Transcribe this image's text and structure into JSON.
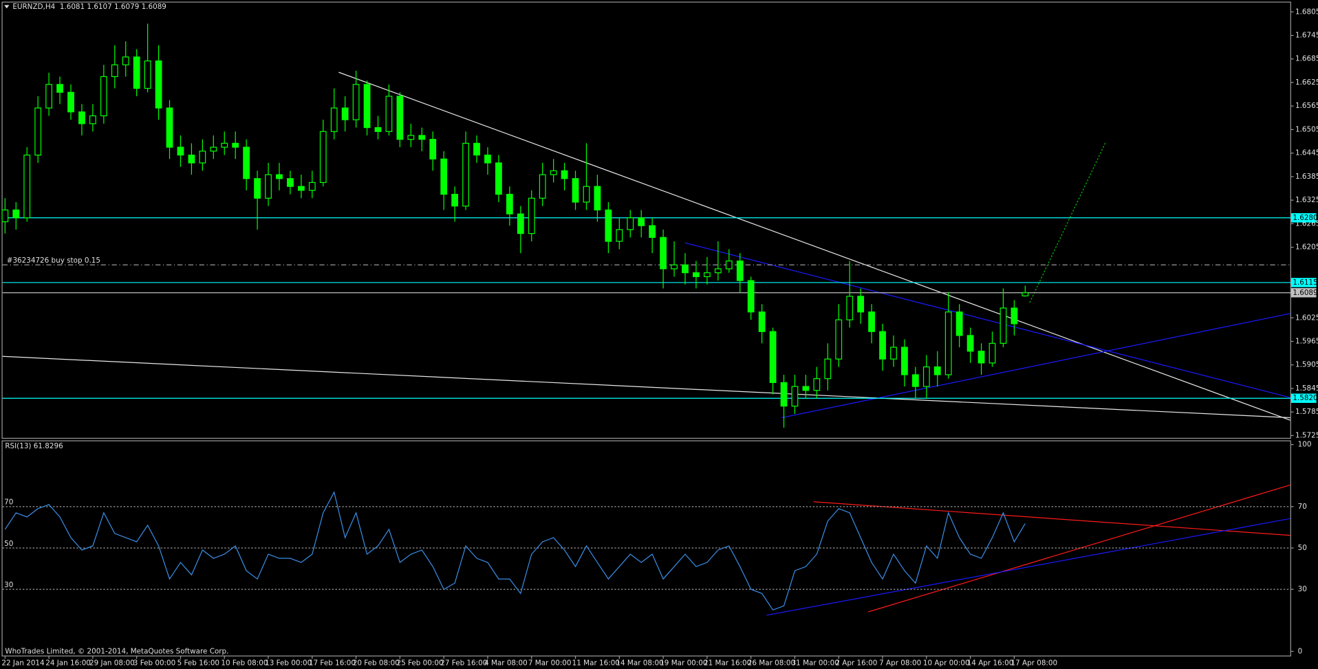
{
  "chart_data": {
    "type": "candlestick",
    "title": "EURNZD,H4  1.6081 1.6107 1.6079 1.6089",
    "categories": [
      "22 Jan 2014",
      null,
      null,
      null,
      "24 Jan 16:00",
      null,
      null,
      null,
      "29 Jan 08:00",
      null,
      null,
      null,
      "3 Feb 00:00",
      null,
      null,
      null,
      "5 Feb 16:00",
      null,
      null,
      null,
      "10 Feb 08:00",
      null,
      null,
      null,
      "13 Feb 00:00",
      null,
      null,
      null,
      "17 Feb 16:00",
      null,
      null,
      null,
      "20 Feb 08:00",
      null,
      null,
      null,
      "25 Feb 00:00",
      null,
      null,
      null,
      "27 Feb 16:00",
      null,
      null,
      null,
      "4 Mar 08:00",
      null,
      null,
      null,
      "7 Mar 00:00",
      null,
      null,
      null,
      "11 Mar 16:00",
      null,
      null,
      null,
      "14 Mar 08:00",
      null,
      null,
      null,
      "19 Mar 00:00",
      null,
      null,
      null,
      "21 Mar 16:00",
      null,
      null,
      null,
      "26 Mar 08:00",
      null,
      null,
      null,
      "31 Mar 00:00",
      null,
      null,
      null,
      "2 Apr 16:00",
      null,
      null,
      null,
      "7 Apr 08:00",
      null,
      null,
      null,
      "10 Apr 00:00",
      null,
      null,
      null,
      "14 Apr 16:00",
      null,
      null,
      null,
      "17 Apr 08:00",
      null
    ],
    "open": [
      1.627,
      1.63,
      1.628,
      1.644,
      1.656,
      1.662,
      1.66,
      1.655,
      1.652,
      1.654,
      1.664,
      1.667,
      1.669,
      1.661,
      1.668,
      1.656,
      1.646,
      1.644,
      1.642,
      1.645,
      1.646,
      1.647,
      1.646,
      1.638,
      1.633,
      1.639,
      1.638,
      1.636,
      1.635,
      1.637,
      1.65,
      1.656,
      1.653,
      1.662,
      1.651,
      1.65,
      1.659,
      1.648,
      1.649,
      1.648,
      1.643,
      1.634,
      1.631,
      1.647,
      1.644,
      1.642,
      1.634,
      1.629,
      1.624,
      1.633,
      1.639,
      1.64,
      1.638,
      1.632,
      1.636,
      1.63,
      1.622,
      1.625,
      1.628,
      1.626,
      1.623,
      1.615,
      1.616,
      1.614,
      1.613,
      1.614,
      1.615,
      1.617,
      1.612,
      1.604,
      1.599,
      1.586,
      1.58,
      1.585,
      1.584,
      1.587,
      1.592,
      1.602,
      1.608,
      1.604,
      1.599,
      1.592,
      1.595,
      1.588,
      1.585,
      1.59,
      1.588,
      1.604,
      1.598,
      1.594,
      1.591,
      1.596,
      1.605,
      1.6081
    ],
    "high": [
      1.633,
      1.632,
      1.646,
      1.659,
      1.665,
      1.664,
      1.662,
      1.657,
      1.657,
      1.667,
      1.672,
      1.673,
      1.671,
      1.6775,
      1.672,
      1.658,
      1.649,
      1.647,
      1.648,
      1.649,
      1.65,
      1.65,
      1.648,
      1.64,
      1.642,
      1.642,
      1.64,
      1.639,
      1.64,
      1.653,
      1.661,
      1.659,
      1.6655,
      1.663,
      1.654,
      1.662,
      1.66,
      1.652,
      1.651,
      1.65,
      1.645,
      1.636,
      1.65,
      1.649,
      1.646,
      1.644,
      1.636,
      1.631,
      1.635,
      1.642,
      1.643,
      1.642,
      1.64,
      1.647,
      1.639,
      1.632,
      1.628,
      1.63,
      1.63,
      1.628,
      1.625,
      1.622,
      1.619,
      1.617,
      1.618,
      1.622,
      1.62,
      1.619,
      1.613,
      1.606,
      1.6,
      1.588,
      1.588,
      1.588,
      1.59,
      1.596,
      1.606,
      1.617,
      1.61,
      1.606,
      1.601,
      1.598,
      1.597,
      1.59,
      1.593,
      1.594,
      1.609,
      1.606,
      1.6,
      1.596,
      1.599,
      1.61,
      1.607,
      1.6107
    ],
    "low": [
      1.624,
      1.625,
      1.627,
      1.642,
      1.654,
      1.657,
      1.653,
      1.649,
      1.65,
      1.652,
      1.661,
      1.664,
      1.659,
      1.66,
      1.653,
      1.643,
      1.641,
      1.639,
      1.64,
      1.643,
      1.644,
      1.643,
      1.635,
      1.625,
      1.631,
      1.635,
      1.634,
      1.633,
      1.633,
      1.636,
      1.648,
      1.65,
      1.651,
      1.649,
      1.648,
      1.649,
      1.646,
      1.646,
      1.645,
      1.64,
      1.63,
      1.627,
      1.63,
      1.642,
      1.639,
      1.632,
      1.626,
      1.619,
      1.622,
      1.631,
      1.637,
      1.635,
      1.63,
      1.63,
      1.627,
      1.619,
      1.62,
      1.623,
      1.623,
      1.619,
      1.61,
      1.613,
      1.611,
      1.61,
      1.611,
      1.612,
      1.614,
      1.609,
      1.602,
      1.596,
      1.583,
      1.5745,
      1.578,
      1.582,
      1.582,
      1.584,
      1.59,
      1.6,
      1.601,
      1.596,
      1.589,
      1.59,
      1.585,
      1.582,
      1.582,
      1.585,
      1.587,
      1.595,
      1.591,
      1.588,
      1.59,
      1.595,
      1.598,
      1.6079
    ],
    "close": [
      1.63,
      1.628,
      1.644,
      1.656,
      1.662,
      1.66,
      1.655,
      1.652,
      1.654,
      1.664,
      1.667,
      1.669,
      1.661,
      1.668,
      1.656,
      1.646,
      1.644,
      1.642,
      1.645,
      1.646,
      1.647,
      1.646,
      1.638,
      1.633,
      1.639,
      1.638,
      1.636,
      1.635,
      1.637,
      1.65,
      1.656,
      1.653,
      1.662,
      1.651,
      1.65,
      1.659,
      1.648,
      1.649,
      1.648,
      1.643,
      1.634,
      1.631,
      1.647,
      1.644,
      1.642,
      1.634,
      1.629,
      1.624,
      1.633,
      1.639,
      1.64,
      1.638,
      1.632,
      1.636,
      1.63,
      1.622,
      1.625,
      1.628,
      1.626,
      1.623,
      1.615,
      1.616,
      1.614,
      1.613,
      1.614,
      1.615,
      1.617,
      1.612,
      1.604,
      1.599,
      1.586,
      1.58,
      1.585,
      1.584,
      1.587,
      1.592,
      1.602,
      1.608,
      1.604,
      1.599,
      1.592,
      1.595,
      1.588,
      1.585,
      1.59,
      1.588,
      1.604,
      1.598,
      1.594,
      1.591,
      1.596,
      1.605,
      1.601,
      1.6089
    ],
    "up_color": "#000000",
    "down_color": "#00ff00",
    "wick_color": "#00ff00",
    "ylim": [
      1.5719,
      1.6831
    ],
    "yticks": [
      1.6805,
      1.6745,
      1.6685,
      1.6625,
      1.6565,
      1.6505,
      1.6445,
      1.6385,
      1.6325,
      1.6265,
      1.6205,
      1.6025,
      1.5965,
      1.5905,
      1.5845,
      1.5785,
      1.5725
    ],
    "levels": [
      {
        "value": 1.628,
        "label": "1.6280",
        "color": "#00ffff"
      },
      {
        "value": 1.6115,
        "label": "1.6115",
        "color": "#00ffff"
      },
      {
        "value": 1.582,
        "label": "1.5820",
        "color": "#00ffff"
      },
      {
        "value": 1.6089,
        "label": "1.6089",
        "color": "#c0c0c0"
      }
    ],
    "order": {
      "label": "#36234726 buy stop 0.15",
      "value": 1.616
    },
    "rsi": {
      "title": "RSI(13) 61.8296",
      "color": "#3a8ee6",
      "values": [
        59,
        67,
        65,
        69,
        71,
        65,
        55,
        49,
        51,
        67,
        57,
        55,
        53,
        61,
        51,
        35,
        43,
        37,
        49,
        45,
        47,
        51,
        39,
        35,
        47,
        45,
        45,
        43,
        47,
        67,
        77,
        55,
        67,
        47,
        51,
        59,
        43,
        47,
        49,
        41,
        30,
        33,
        51,
        45,
        43,
        35,
        35,
        28,
        47,
        53,
        55,
        49,
        41,
        51,
        43,
        35,
        41,
        47,
        43,
        47,
        35,
        41,
        47,
        41,
        43,
        49,
        51,
        41,
        30,
        28,
        20,
        22,
        39,
        41,
        47,
        63,
        69,
        67,
        55,
        43,
        35,
        47,
        39,
        33,
        51,
        45,
        67,
        55,
        47,
        45,
        55,
        67,
        53,
        61.8296
      ],
      "ylim": [
        0,
        100
      ],
      "yticks": [
        100,
        70,
        50,
        30,
        0
      ],
      "levels": [
        70,
        50,
        30
      ]
    },
    "footer": "WhoTrades Limited, © 2001-2014, MetaQuotes Software Corp."
  }
}
